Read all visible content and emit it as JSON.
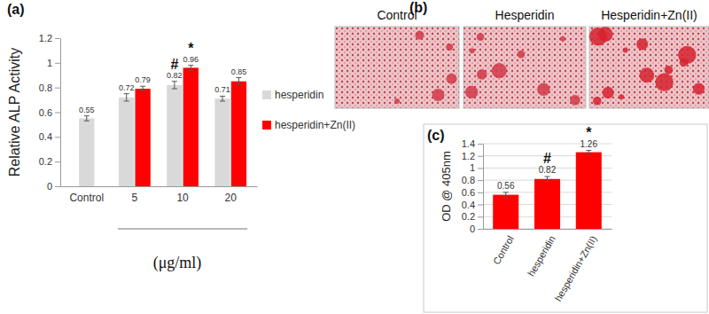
{
  "chart_data": [
    {
      "type": "bar",
      "panel_label": "(a)",
      "y_label": "Relative ALP Activity",
      "x_label": "(μg/ml)",
      "categories": [
        "Control",
        "5",
        "10",
        "20"
      ],
      "series": [
        {
          "name": "hesperidin",
          "color": "#d9d9d9",
          "values": [
            0.55,
            0.72,
            0.82,
            0.71
          ],
          "errors": [
            0.02,
            0.03,
            0.03,
            0.02
          ],
          "significance": [
            null,
            null,
            "#",
            null
          ]
        },
        {
          "name": "hesperidin+Zn(II)",
          "color": "#ff0000",
          "values": [
            null,
            0.79,
            0.96,
            0.85
          ],
          "errors": [
            null,
            0.02,
            0.02,
            0.03
          ],
          "significance": [
            null,
            null,
            "*",
            null
          ]
        }
      ],
      "ylim": [
        0,
        1.2
      ],
      "yticks": [
        0,
        0.2,
        0.4,
        0.6,
        0.8,
        1,
        1.2
      ],
      "grid": false,
      "legend": "right",
      "data_labels": true
    },
    {
      "type": "bar",
      "panel_label": "(c)",
      "y_label": "OD @ 405nm",
      "categories": [
        "Control",
        "hesperidin",
        "hesperidin+Zn(II)"
      ],
      "values": [
        0.56,
        0.82,
        1.26
      ],
      "errors": [
        0.04,
        0.04,
        0.03
      ],
      "significance": [
        null,
        "#",
        "*"
      ],
      "color": "#ff0000",
      "ylim": [
        0,
        1.4
      ],
      "yticks": [
        0,
        0.2,
        0.4,
        0.6,
        0.8,
        1,
        1.2,
        1.4
      ],
      "grid": true,
      "data_labels": true
    }
  ],
  "images": {
    "panel_label": "(b)",
    "titles": [
      "Control",
      "Hesperidin",
      "Hesperidin+Zn(II)"
    ]
  }
}
